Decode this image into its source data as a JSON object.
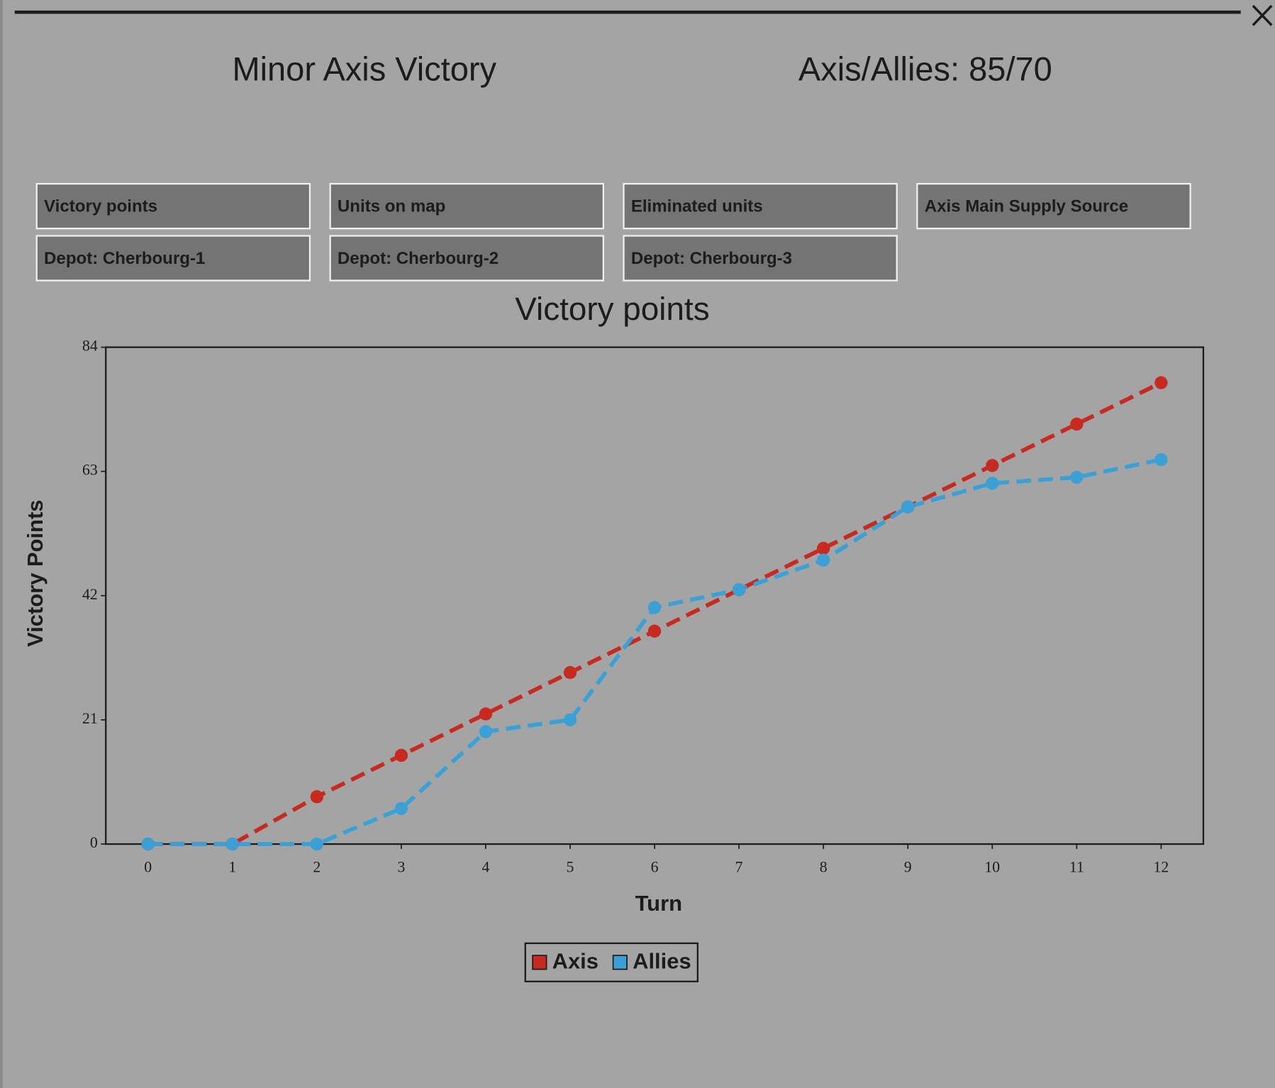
{
  "header": {
    "result": "Minor Axis Victory",
    "score": "Axis/Allies: 85/70"
  },
  "tabs": [
    "Victory points",
    "Units on map",
    "Eliminated units",
    "Axis Main Supply Source",
    "Depot: Cherbourg-1",
    "Depot: Cherbourg-2",
    "Depot: Cherbourg-3"
  ],
  "chart_data": {
    "type": "line",
    "title": "Victory points",
    "x_label": "Turn",
    "y_label": "Victory Points",
    "x": [
      0,
      1,
      2,
      3,
      4,
      5,
      6,
      7,
      8,
      9,
      10,
      11,
      12
    ],
    "xlim": [
      -0.5,
      12.5
    ],
    "xticks": [
      0,
      1,
      2,
      3,
      4,
      5,
      6,
      7,
      8,
      9,
      10,
      11,
      12
    ],
    "ylim": [
      0,
      84
    ],
    "yticks": [
      0,
      21,
      42,
      63,
      84
    ],
    "grid": false,
    "line_style": "dashed",
    "legend": "bottom",
    "series": [
      {
        "name": "Axis",
        "color": "#c62a20",
        "values": [
          0,
          0,
          8,
          15,
          22,
          29,
          36,
          43,
          50,
          57,
          64,
          71,
          78
        ]
      },
      {
        "name": "Allies",
        "color": "#3aa0d6",
        "values": [
          0,
          0,
          0,
          6,
          19,
          21,
          40,
          43,
          48,
          57,
          61,
          62,
          65
        ]
      }
    ]
  }
}
